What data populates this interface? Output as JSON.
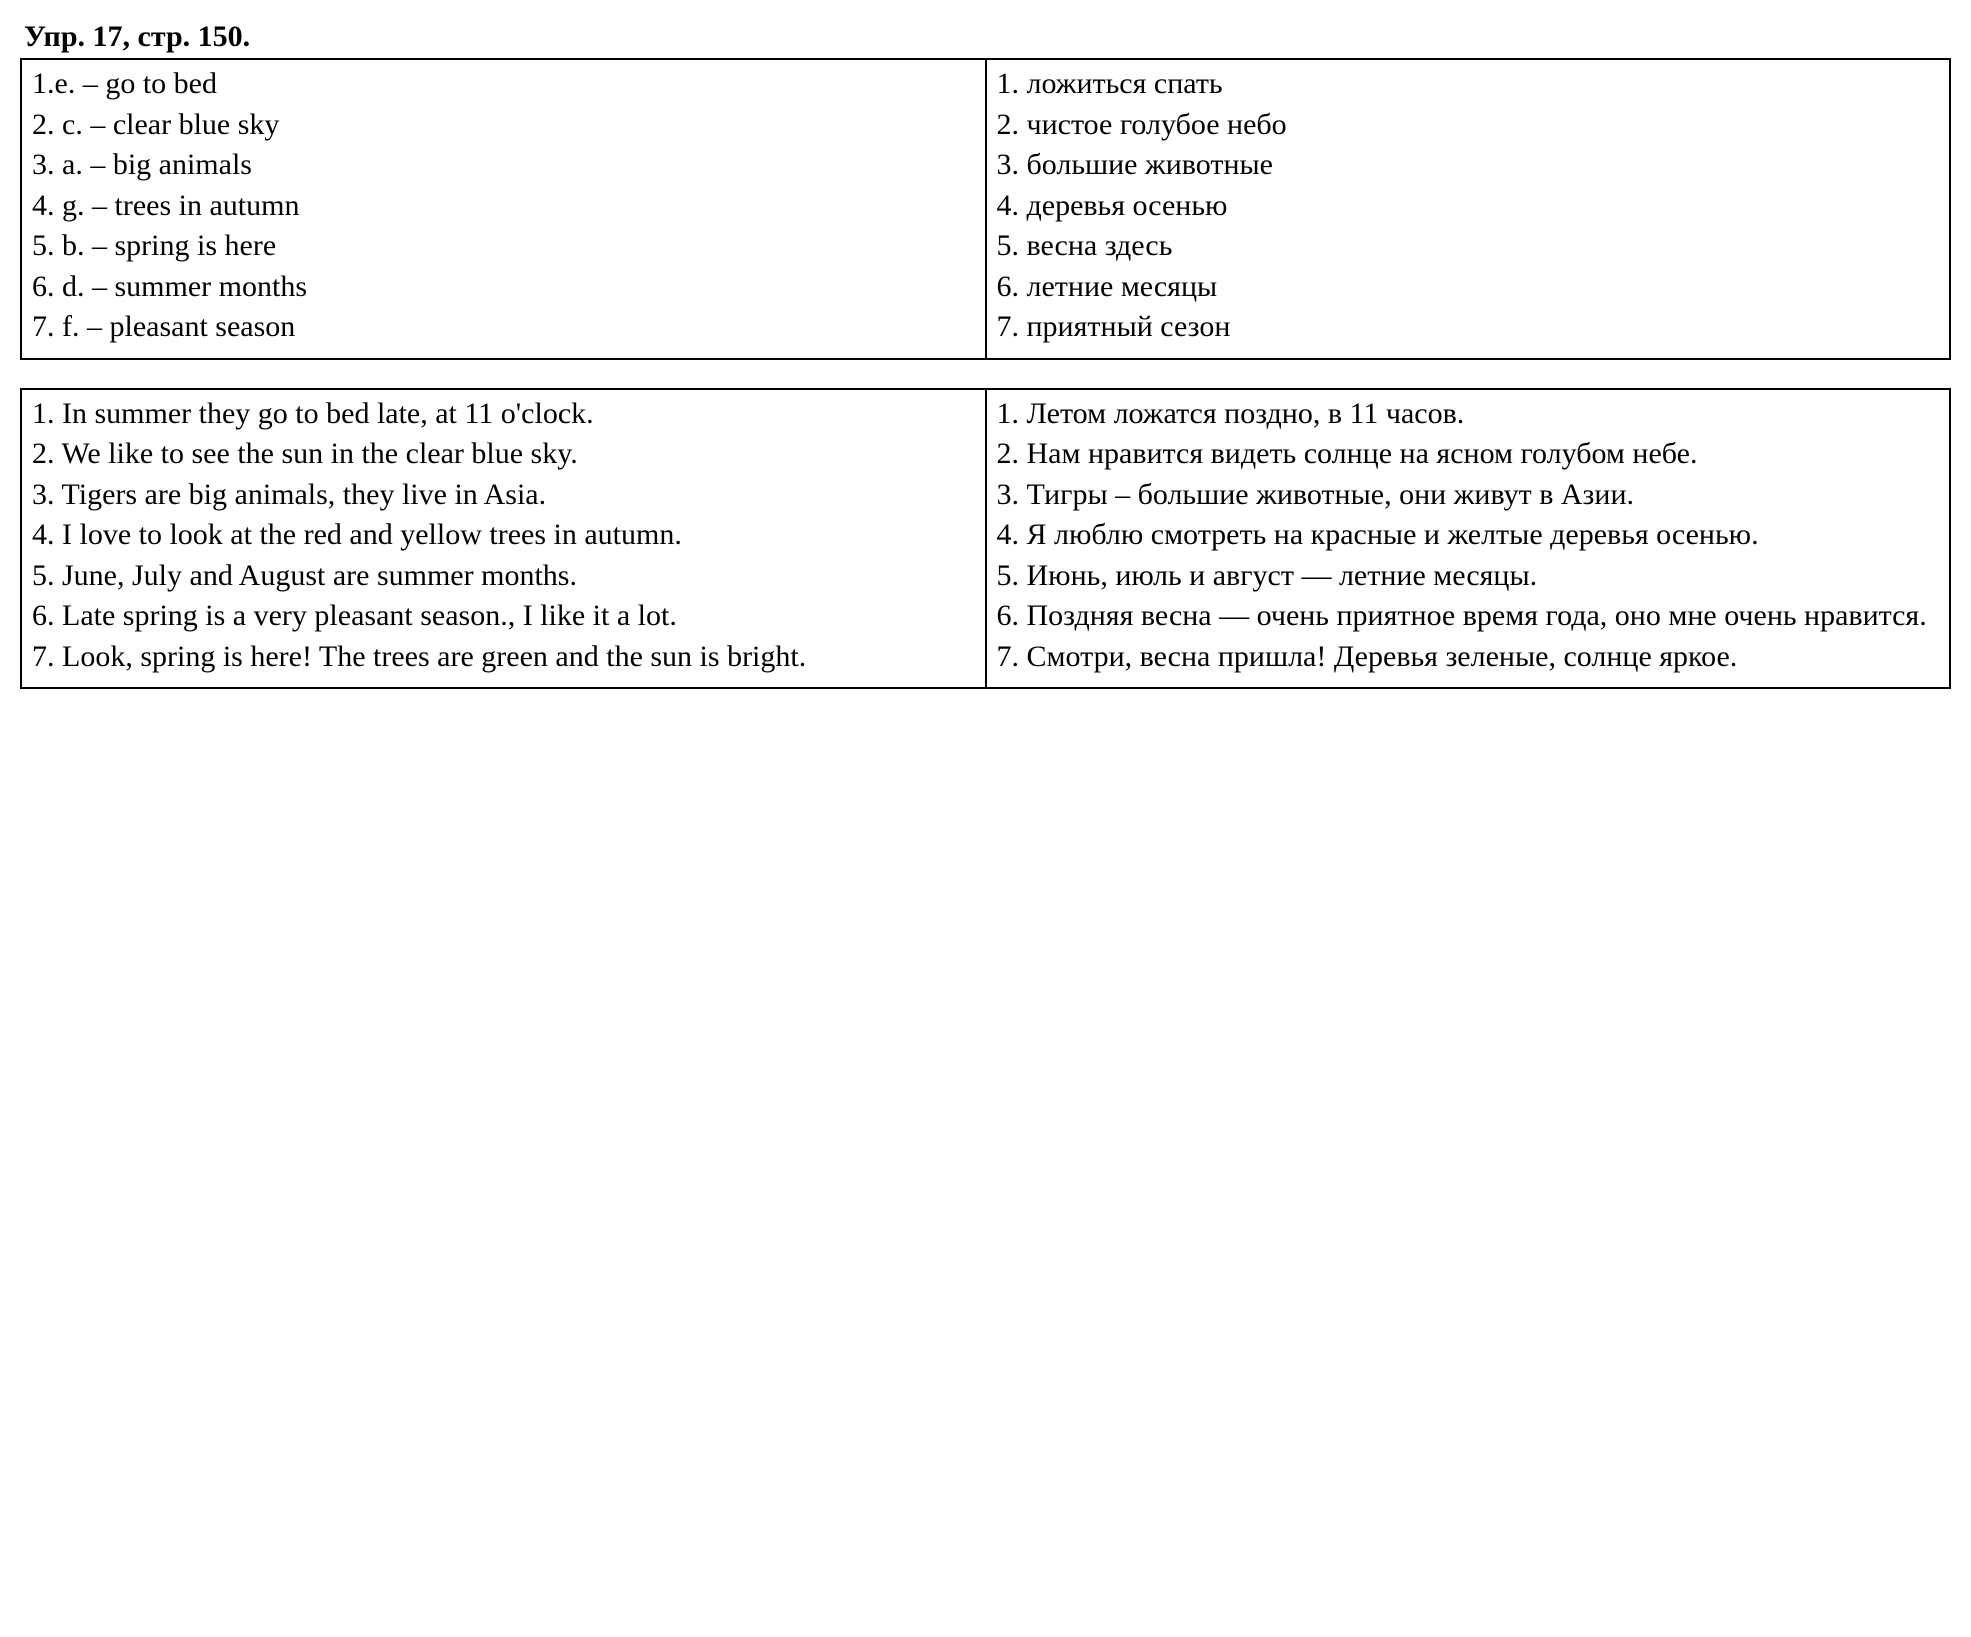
{
  "title": "Упр. 17, стр. 150.",
  "table1": {
    "left": [
      "1.e. – go to bed",
      "2. c. – clear blue sky",
      "3. a. – big animals",
      "4. g. – trees in autumn",
      "5. b. – spring is here",
      "6. d. – summer months",
      "7. f. – pleasant season"
    ],
    "right": [
      "1. ложиться спать",
      "2. чистое голубое небо",
      "3. большие животные",
      "4. деревья осенью",
      "5. весна здесь",
      "6. летние месяцы",
      "7. приятный сезон"
    ]
  },
  "table2": {
    "left": [
      "1. In summer they go to bed late, at 11 o'clock.",
      "2. We like to see the sun in the clear blue sky.",
      "3. Tigers are big animals, they live in Asia.",
      "4. I love to look at the red and yellow trees in autumn.",
      "5. June, July and August are summer months.",
      "6. Late spring is a very pleasant season., I like it a lot.",
      "7. Look, spring is here! The trees are green and the sun is bright."
    ],
    "right": [
      "1. Летом ложатся поздно, в 11 часов.",
      "2. Нам нравится видеть солнце на ясном голубом небе.",
      "3. Тигры – большие животные, они живут в Азии.",
      "4. Я люблю смотреть на красные и желтые деревья осенью.",
      "5. Июнь, июль и август — летние месяцы.",
      "6. Поздняя весна — очень приятное время года, оно мне очень нравится.",
      "7. Смотри, весна пришла! Деревья зеленые, солнце яркое."
    ]
  },
  "colors": {
    "text": "#000000",
    "background": "#ffffff",
    "border": "#000000"
  },
  "typography": {
    "font_family": "Times New Roman",
    "title_fontsize": 30,
    "body_fontsize": 30,
    "title_weight": "bold"
  }
}
